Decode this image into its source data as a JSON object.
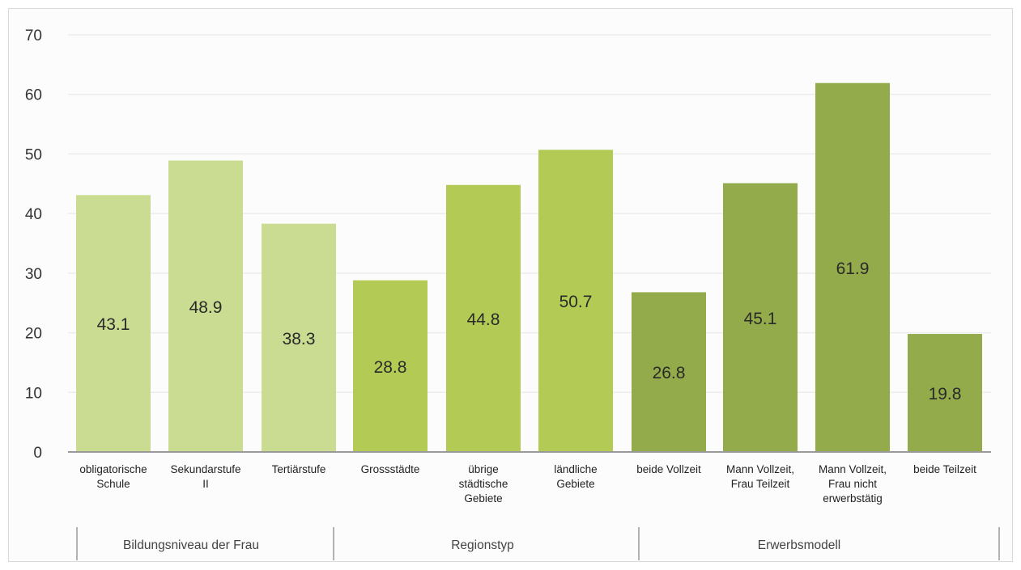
{
  "chart_data": {
    "type": "bar",
    "title": "",
    "xlabel": "",
    "ylabel": "",
    "ylim": [
      0,
      70
    ],
    "yticks": [
      0,
      10,
      20,
      30,
      40,
      50,
      60,
      70
    ],
    "grid": true,
    "categories": [
      "obligatorische Schule",
      "Sekundarstufe II",
      "Tertiärstufe",
      "Grossstädte",
      "übrige städtische Gebiete",
      "ländliche Gebiete",
      "beide Vollzeit",
      "Mann Vollzeit, Frau Teilzeit",
      "Mann Vollzeit, Frau nicht erwerbstätig",
      "beide Teilzeit"
    ],
    "category_label_lines": [
      [
        "obligatorische",
        "Schule"
      ],
      [
        "Sekundarstufe",
        "II"
      ],
      [
        "Tertiärstufe"
      ],
      [
        "Grossstädte"
      ],
      [
        "übrige",
        "städtische",
        "Gebiete"
      ],
      [
        "ländliche",
        "Gebiete"
      ],
      [
        "beide Vollzeit"
      ],
      [
        "Mann Vollzeit,",
        "Frau Teilzeit"
      ],
      [
        "Mann Vollzeit,",
        "Frau nicht",
        "erwerbstätig"
      ],
      [
        "beide Teilzeit"
      ]
    ],
    "values": [
      43.1,
      48.9,
      38.3,
      28.8,
      44.8,
      50.7,
      26.8,
      45.1,
      61.9,
      19.8
    ],
    "value_labels": [
      "43.1",
      "48.9",
      "38.3",
      "28.8",
      "44.8",
      "50.7",
      "26.8",
      "45.1",
      "61.9",
      "19.8"
    ],
    "groups": [
      {
        "name": "Bildungsniveau der Frau",
        "members": [
          0,
          1,
          2
        ],
        "color": "#c9dc91"
      },
      {
        "name": "Regionstyp",
        "members": [
          3,
          4,
          5
        ],
        "color": "#b3cb55"
      },
      {
        "name": "Erwerbsmodell",
        "members": [
          6,
          7,
          8,
          9
        ],
        "color": "#93ab4a"
      }
    ],
    "colors": {
      "grid": "#ececec",
      "axis": "#9a9a9a"
    }
  }
}
